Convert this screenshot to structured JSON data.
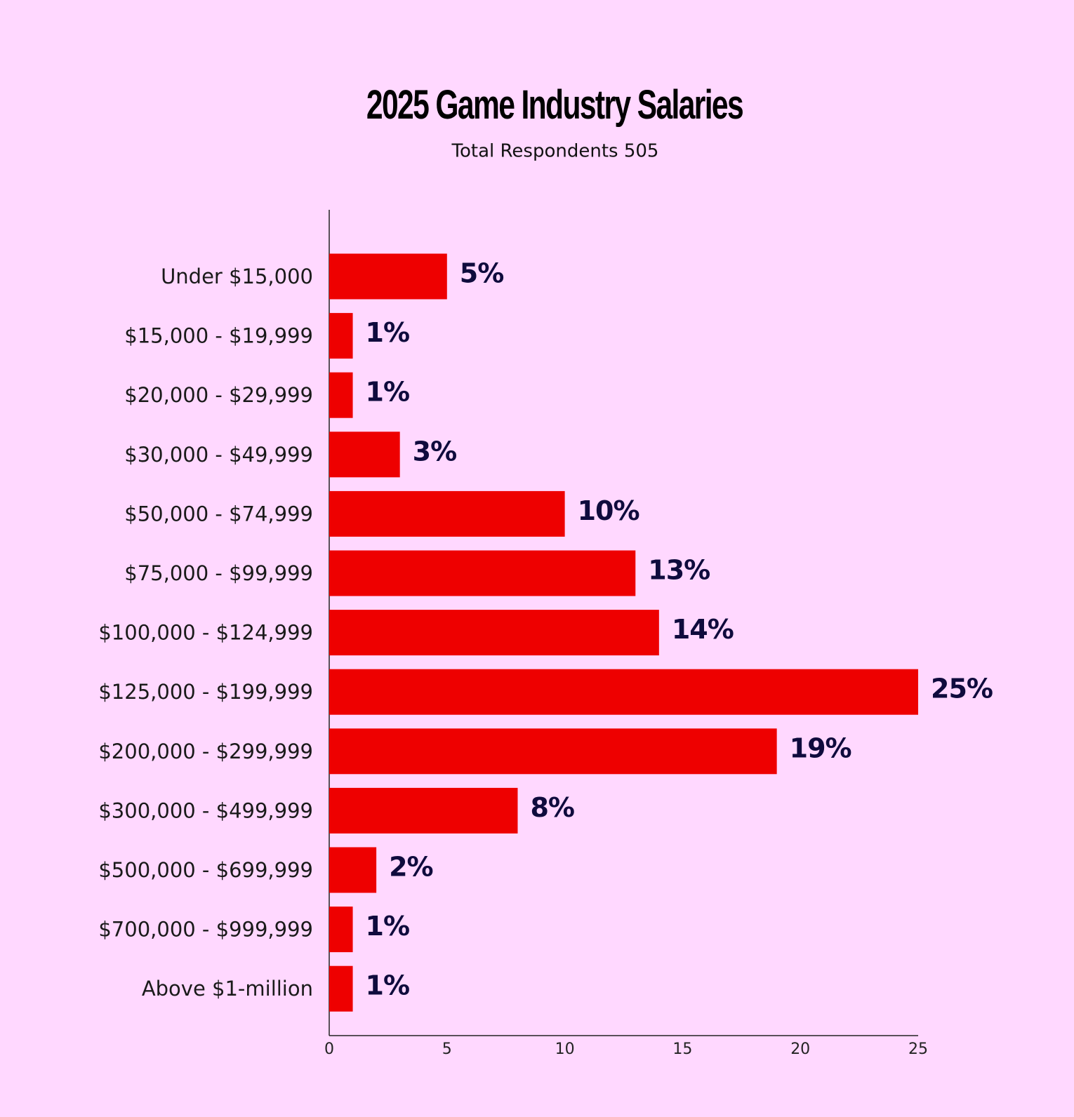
{
  "chart_data": {
    "type": "bar",
    "orientation": "horizontal",
    "title": "2025 Game Industry Salaries",
    "subtitle": "Total Respondents 505",
    "categories": [
      "Under $15,000",
      "$15,000 - $19,999",
      "$20,000 - $29,999",
      "$30,000 - $49,999",
      "$50,000 - $74,999",
      "$75,000 - $99,999",
      "$100,000 - $124,999",
      "$125,000 - $199,999",
      "$200,000 - $299,999",
      "$300,000 - $499,999",
      "$500,000 - $699,999",
      "$700,000 - $999,999",
      "Above $1-million"
    ],
    "values": [
      5,
      1,
      1,
      3,
      10,
      13,
      14,
      25,
      19,
      8,
      2,
      1,
      1
    ],
    "value_labels": [
      "5%",
      "1%",
      "1%",
      "3%",
      "10%",
      "13%",
      "14%",
      "25%",
      "19%",
      "8%",
      "2%",
      "1%",
      "1%"
    ],
    "color": "#ee0000",
    "xlim": [
      0,
      25
    ],
    "xticks": [
      0,
      5,
      10,
      15,
      20,
      25
    ],
    "grid": false
  }
}
